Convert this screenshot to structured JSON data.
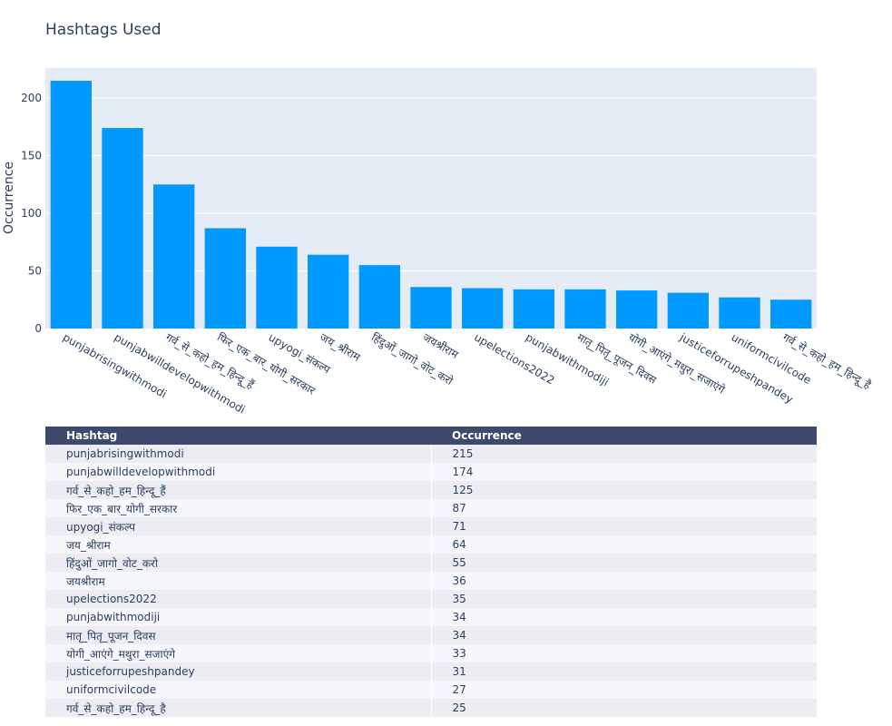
{
  "chart_data": {
    "type": "bar",
    "title": "Hashtags Used",
    "xlabel": "",
    "ylabel": "Occurrence",
    "ylim": [
      0,
      226
    ],
    "yticks": [
      0,
      50,
      100,
      150,
      200
    ],
    "grid": true,
    "bar_color": "#0099ff",
    "plot_background": "#e5ecf6",
    "categories": [
      "punjabrisingwithmodi",
      "punjabwilldevelopwithmodi",
      "गर्व_से_कहो_हम_हिन्दू_हैं",
      "फिर_एक_बार_योगी_सरकार",
      "upyogi_संकल्प",
      "जय_श्रीराम",
      "हिंदुओं_जागो_वोट_करो",
      "जयश्रीराम",
      "upelections2022",
      "punjabwithmodiji",
      "मातृ_पितृ_पूजन_दिवस",
      "योगी_आएंगे_मथुरा_सजाएंगे",
      "justiceforrupeshpandey",
      "uniformcivilcode",
      "गर्व_से_कहो_हम_हिन्दू_है"
    ],
    "values": [
      215,
      174,
      125,
      87,
      71,
      64,
      55,
      36,
      35,
      34,
      34,
      33,
      31,
      27,
      25
    ]
  },
  "table": {
    "header_color": "#3d4a6e",
    "columns": [
      "Hashtag",
      "Occurrence"
    ]
  }
}
